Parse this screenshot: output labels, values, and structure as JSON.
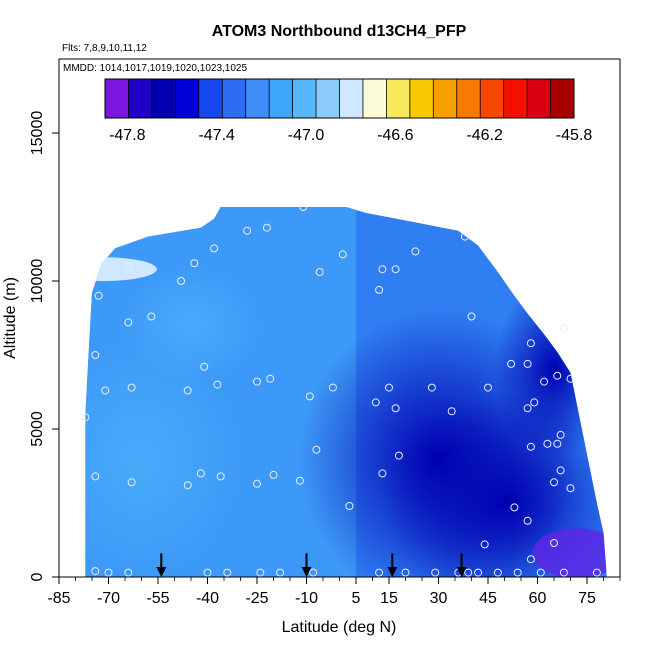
{
  "chart_data": {
    "type": "heatmap",
    "title": "ATOM3 Northbound d13CH4_PFP",
    "flights_label": "Flts: 7,8,9,10,11,12",
    "dates_label": "MMDD: 1014,1017,1019,1020,1023,1025",
    "xlabel": "Latitude (deg N)",
    "ylabel": "Altitude (m)",
    "xlim": [
      -85,
      85
    ],
    "ylim": [
      0,
      17500
    ],
    "x_ticks": [
      -85,
      -70,
      -55,
      -40,
      -25,
      -10,
      5,
      15,
      30,
      45,
      60,
      75
    ],
    "y_ticks": [
      0,
      5000,
      10000,
      15000
    ],
    "colorbar": {
      "min": -47.9,
      "max": -45.8,
      "tick_values": [
        -47.8,
        -47.4,
        -47.0,
        -46.6,
        -46.2,
        -45.8
      ],
      "tick_labels": [
        "-47.8",
        "-47.4",
        "-47.0",
        "-46.6",
        "-46.2",
        "-45.8"
      ],
      "colors": [
        "#7a16e0",
        "#1e00c8",
        "#0000b0",
        "#0000d6",
        "#1848f0",
        "#2e6cf2",
        "#3d8ef6",
        "#3ea6f8",
        "#56b8fb",
        "#8acbfb",
        "#cfe8ff",
        "#fbfbd8",
        "#f7e85e",
        "#f8c800",
        "#f8a000",
        "#f87a00",
        "#f84800",
        "#f41000",
        "#d80010",
        "#a80000"
      ]
    },
    "arrows_latitude": [
      -54,
      -10,
      16,
      37
    ],
    "samples": [
      {
        "x": -74,
        "y": 200
      },
      {
        "x": -70,
        "y": 150
      },
      {
        "x": -64,
        "y": 150
      },
      {
        "x": -40,
        "y": 150
      },
      {
        "x": -34,
        "y": 150
      },
      {
        "x": -24,
        "y": 150
      },
      {
        "x": -18,
        "y": 150
      },
      {
        "x": -8,
        "y": 150
      },
      {
        "x": 12,
        "y": 150
      },
      {
        "x": 20,
        "y": 150
      },
      {
        "x": 29,
        "y": 150
      },
      {
        "x": 36,
        "y": 150
      },
      {
        "x": 39,
        "y": 150
      },
      {
        "x": 42,
        "y": 150
      },
      {
        "x": 48,
        "y": 150
      },
      {
        "x": 54,
        "y": 150
      },
      {
        "x": 61,
        "y": 150
      },
      {
        "x": 68,
        "y": 150
      },
      {
        "x": 78,
        "y": 150
      },
      {
        "x": 58,
        "y": 600
      },
      {
        "x": 44,
        "y": 1100
      },
      {
        "x": 65,
        "y": 1150
      },
      {
        "x": 57,
        "y": 1900
      },
      {
        "x": 53,
        "y": 2350
      },
      {
        "x": 3,
        "y": 2400
      },
      {
        "x": -74,
        "y": 3400
      },
      {
        "x": -63,
        "y": 3200
      },
      {
        "x": -46,
        "y": 3100
      },
      {
        "x": -42,
        "y": 3500
      },
      {
        "x": -36,
        "y": 3400
      },
      {
        "x": -25,
        "y": 3150
      },
      {
        "x": -20,
        "y": 3450
      },
      {
        "x": -12,
        "y": 3250
      },
      {
        "x": 13,
        "y": 3500
      },
      {
        "x": 18,
        "y": 4100
      },
      {
        "x": 70,
        "y": 3000
      },
      {
        "x": 65,
        "y": 3200
      },
      {
        "x": 67,
        "y": 3600
      },
      {
        "x": 58,
        "y": 4400
      },
      {
        "x": 63,
        "y": 4500
      },
      {
        "x": 66,
        "y": 4500
      },
      {
        "x": 67,
        "y": 4800
      },
      {
        "x": -7,
        "y": 4300
      },
      {
        "x": -77,
        "y": 5400
      },
      {
        "x": -74,
        "y": 7500
      },
      {
        "x": -71,
        "y": 6300
      },
      {
        "x": -63,
        "y": 6400
      },
      {
        "x": -46,
        "y": 6300
      },
      {
        "x": -41,
        "y": 7100
      },
      {
        "x": -37,
        "y": 6500
      },
      {
        "x": -25,
        "y": 6600
      },
      {
        "x": -21,
        "y": 6700
      },
      {
        "x": -9,
        "y": 6100
      },
      {
        "x": -2,
        "y": 6400
      },
      {
        "x": 11,
        "y": 5900
      },
      {
        "x": 15,
        "y": 6400
      },
      {
        "x": 17,
        "y": 5700
      },
      {
        "x": 28,
        "y": 6400
      },
      {
        "x": 34,
        "y": 5600
      },
      {
        "x": 45,
        "y": 6400
      },
      {
        "x": 52,
        "y": 7200
      },
      {
        "x": 57,
        "y": 5700
      },
      {
        "x": 59,
        "y": 5900
      },
      {
        "x": 57,
        "y": 7200
      },
      {
        "x": 62,
        "y": 6600
      },
      {
        "x": 66,
        "y": 6800
      },
      {
        "x": 70,
        "y": 6700
      },
      {
        "x": 58,
        "y": 7900
      },
      {
        "x": 68,
        "y": 8400
      },
      {
        "x": 40,
        "y": 8800
      },
      {
        "x": -73,
        "y": 9500
      },
      {
        "x": -64,
        "y": 8600
      },
      {
        "x": -57,
        "y": 8800
      },
      {
        "x": -48,
        "y": 10000
      },
      {
        "x": -44,
        "y": 10600
      },
      {
        "x": -38,
        "y": 11100
      },
      {
        "x": -28,
        "y": 11700
      },
      {
        "x": -22,
        "y": 11800
      },
      {
        "x": -64,
        "y": 10500
      },
      {
        "x": -11,
        "y": 12500
      },
      {
        "x": -6,
        "y": 10300
      },
      {
        "x": 1,
        "y": 10900
      },
      {
        "x": 12,
        "y": 9700
      },
      {
        "x": 13,
        "y": 10400
      },
      {
        "x": 17,
        "y": 10400
      },
      {
        "x": 23,
        "y": 11000
      },
      {
        "x": 38,
        "y": 11500
      }
    ]
  }
}
